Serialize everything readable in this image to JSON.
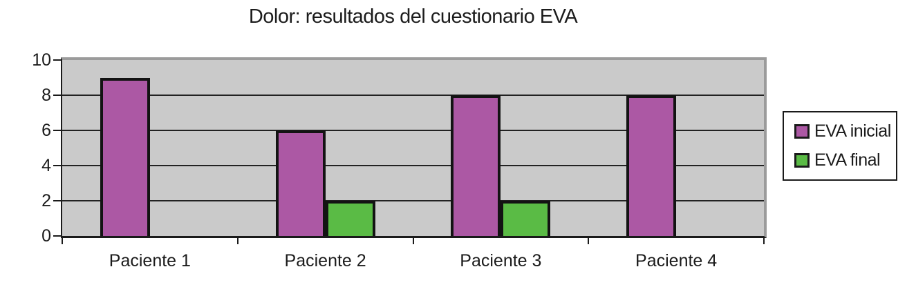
{
  "chart_data": {
    "type": "bar",
    "title": "Dolor: resultados del cuestionario EVA",
    "categories": [
      "Paciente 1",
      "Paciente 2",
      "Paciente 3",
      "Paciente 4"
    ],
    "series": [
      {
        "name": "EVA inicial",
        "color": "#ac58a4",
        "values": [
          9,
          6,
          8,
          8
        ]
      },
      {
        "name": "EVA final",
        "color": "#5abb45",
        "values": [
          0,
          2,
          2,
          0
        ]
      }
    ],
    "xlabel": "",
    "ylabel": "",
    "ylim": [
      0,
      10
    ],
    "yticks": [
      0,
      2,
      4,
      6,
      8,
      10
    ],
    "grid": "horizontal",
    "legend_position": "right",
    "plot_bg_color": "#cacaca",
    "plot_border_color": "#9b9b9b",
    "axis_color": "#1a1a1a"
  }
}
